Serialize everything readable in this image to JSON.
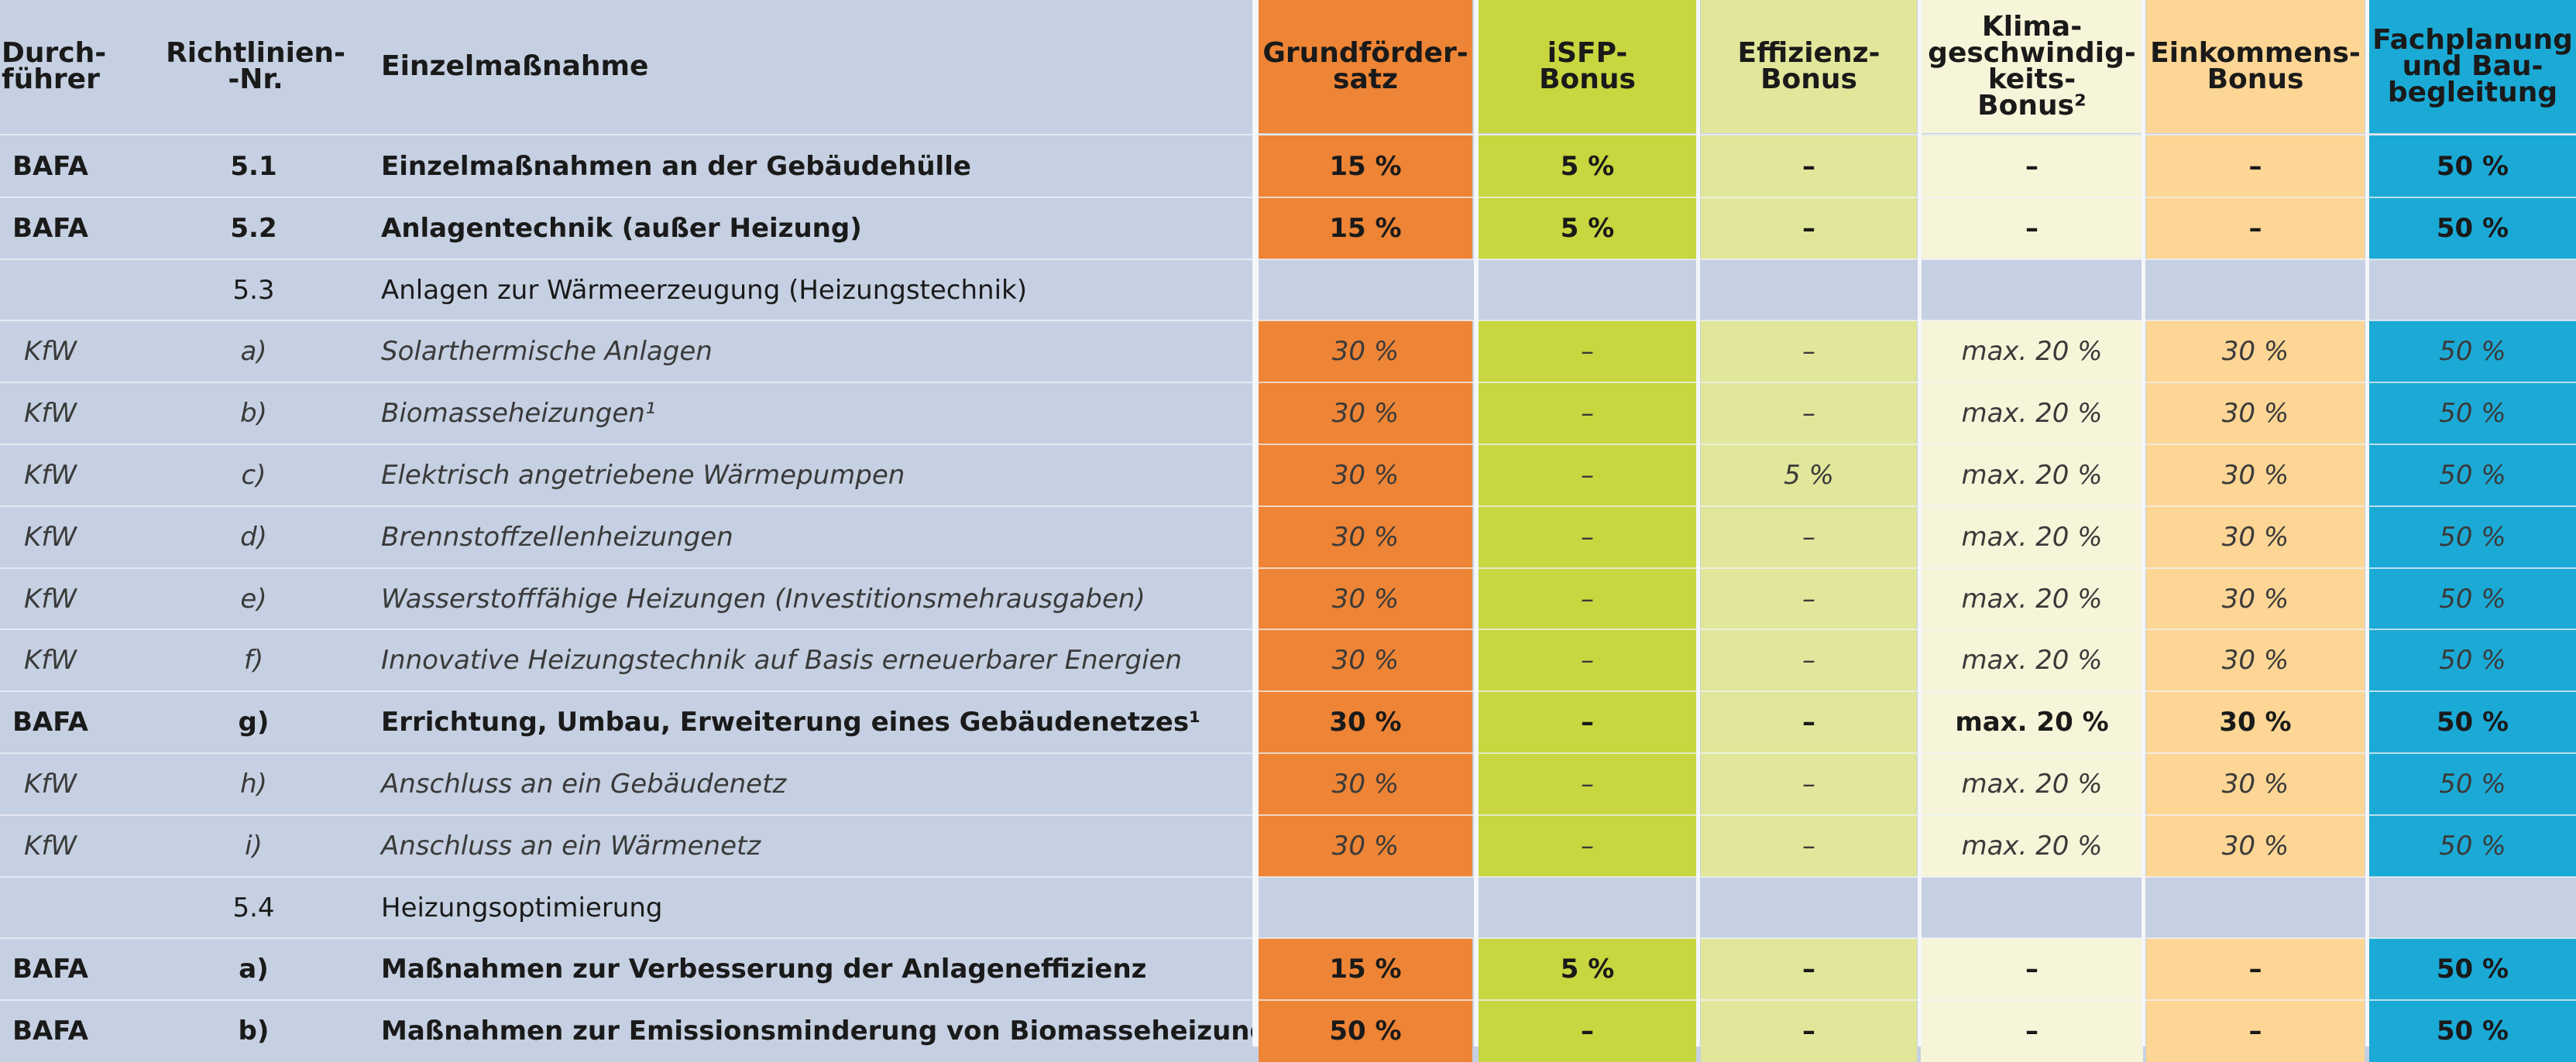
{
  "headers": {
    "durchfuehrer": "Durch-\nführer",
    "richtlinie": "Richtlinien-\n-Nr.",
    "massnahme": "Einzelmaßnahme",
    "grund": "Grundförder-\nsatz",
    "isfp": "iSFP-\nBonus",
    "effizienz": "Effizienz-\nBonus",
    "klima": "Klima-\ngeschwindig-\nkeits-\nBonus²",
    "einkommen": "Einkommens-\nBonus",
    "fach": "Fachplanung\nund Bau-\nbegleitung"
  },
  "rows": [
    {
      "kind": "bold",
      "durch": "BAFA",
      "nr": "5.1",
      "name": "Einzelmaßnahmen an der Gebäudehülle",
      "grund": "15 %",
      "isfp": "5 %",
      "eff": "–",
      "klima": "–",
      "eink": "–",
      "fach": "50 %"
    },
    {
      "kind": "bold",
      "durch": "BAFA",
      "nr": "5.2",
      "name": "Anlagentechnik (außer Heizung)",
      "grund": "15 %",
      "isfp": "5 %",
      "eff": "–",
      "klima": "–",
      "eink": "–",
      "fach": "50 %"
    },
    {
      "kind": "section",
      "durch": "",
      "nr": "5.3",
      "name": "Anlagen zur Wärmeerzeugung (Heizungstechnik)"
    },
    {
      "kind": "italic",
      "durch": "KfW",
      "nr": "a)",
      "name": "Solarthermische Anlagen",
      "grund": "30 %",
      "isfp": "–",
      "eff": "–",
      "klima": "max. 20 %",
      "eink": "30 %",
      "fach": "50 %"
    },
    {
      "kind": "italic",
      "durch": "KfW",
      "nr": "b)",
      "name": "Biomasseheizungen¹",
      "grund": "30 %",
      "isfp": "–",
      "eff": "–",
      "klima": "max. 20 %",
      "eink": "30 %",
      "fach": "50 %"
    },
    {
      "kind": "italic",
      "durch": "KfW",
      "nr": "c)",
      "name": "Elektrisch angetriebene Wärmepumpen",
      "grund": "30 %",
      "isfp": "–",
      "eff": "5 %",
      "klima": "max. 20 %",
      "eink": "30 %",
      "fach": "50 %"
    },
    {
      "kind": "italic",
      "durch": "KfW",
      "nr": "d)",
      "name": "Brennstoffzellenheizungen",
      "grund": "30 %",
      "isfp": "–",
      "eff": "–",
      "klima": "max. 20 %",
      "eink": "30 %",
      "fach": "50 %"
    },
    {
      "kind": "italic",
      "durch": "KfW",
      "nr": "e)",
      "name": "Wasserstofffähige Heizungen (Investitionsmehrausgaben)",
      "grund": "30 %",
      "isfp": "–",
      "eff": "–",
      "klima": "max. 20 %",
      "eink": "30 %",
      "fach": "50 %"
    },
    {
      "kind": "italic",
      "durch": "KfW",
      "nr": "f)",
      "name": "Innovative Heizungstechnik auf Basis erneuerbarer Energien",
      "grund": "30 %",
      "isfp": "–",
      "eff": "–",
      "klima": "max. 20 %",
      "eink": "30 %",
      "fach": "50 %"
    },
    {
      "kind": "bold",
      "durch": "BAFA",
      "nr": "g)",
      "name": "Errichtung, Umbau, Erweiterung eines Gebäudenetzes¹",
      "grund": "30 %",
      "isfp": "–",
      "eff": "–",
      "klima": "max. 20 %",
      "eink": "30 %",
      "fach": "50 %"
    },
    {
      "kind": "italic",
      "durch": "KfW",
      "nr": "h)",
      "name": "Anschluss an ein Gebäudenetz",
      "grund": "30 %",
      "isfp": "–",
      "eff": "–",
      "klima": "max. 20 %",
      "eink": "30 %",
      "fach": "50 %"
    },
    {
      "kind": "italic",
      "durch": "KfW",
      "nr": "i)",
      "name": "Anschluss an ein Wärmenetz",
      "grund": "30 %",
      "isfp": "–",
      "eff": "–",
      "klima": "max. 20 %",
      "eink": "30 %",
      "fach": "50 %"
    },
    {
      "kind": "section",
      "durch": "",
      "nr": "5.4",
      "name": "Heizungsoptimierung"
    },
    {
      "kind": "bold",
      "durch": "BAFA",
      "nr": "a)",
      "name": "Maßnahmen zur Verbesserung der Anlageneffizienz",
      "grund": "15 %",
      "isfp": "5 %",
      "eff": "–",
      "klima": "–",
      "eink": "–",
      "fach": "50 %"
    },
    {
      "kind": "bold",
      "durch": "BAFA",
      "nr": "b)",
      "name": "Maßnahmen zur Emissionsminderung von Biomasseheizungen",
      "grund": "50 %",
      "isfp": "–",
      "eff": "–",
      "klima": "–",
      "eink": "–",
      "fach": "50 %"
    }
  ],
  "colors": {
    "base": "#c5d0e2",
    "grund": "#ee8435",
    "isfp": "#c8d63f",
    "effizienz": "#e1e69a",
    "klima": "#f7f5d9",
    "einkommen": "#fdd594",
    "fach": "#1baad6"
  }
}
